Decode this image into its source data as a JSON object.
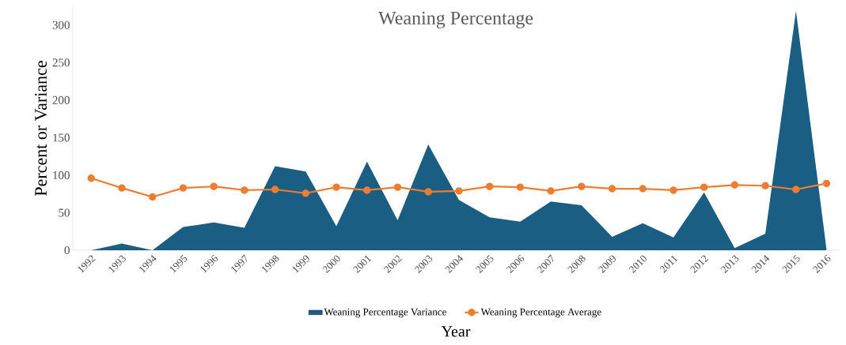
{
  "chart_data": {
    "type": "area",
    "title": "Weaning Percentage",
    "xlabel": "Year",
    "ylabel": "Percent or Variance",
    "categories": [
      "1992",
      "1993",
      "1994",
      "1995",
      "1996",
      "1997",
      "1998",
      "1999",
      "2000",
      "2001",
      "2002",
      "2003",
      "2004",
      "2005",
      "2006",
      "2007",
      "2008",
      "2009",
      "2010",
      "2011",
      "2012",
      "2013",
      "2014",
      "2015",
      "2016"
    ],
    "series": [
      {
        "name": "Weaning Percentage Variance",
        "color": "#1a5e83",
        "values": [
          0,
          9,
          0,
          31,
          37,
          30,
          112,
          105,
          32,
          118,
          40,
          141,
          67,
          44,
          38,
          65,
          60,
          18,
          36,
          17,
          77,
          3,
          22,
          319,
          0
        ]
      },
      {
        "name": "Weaning Percentage Average",
        "type": "line",
        "color": "#ed7d31",
        "marker": "circle",
        "values": [
          96,
          83,
          71,
          83,
          85,
          80,
          81,
          76,
          84,
          80,
          84,
          78,
          79,
          85,
          84,
          79,
          85,
          82,
          82,
          80,
          84,
          87,
          86,
          81,
          89
        ]
      }
    ],
    "ylim": [
      0,
      325
    ],
    "yticks": [
      0,
      50,
      100,
      150,
      200,
      250,
      300
    ],
    "grid": false,
    "legend": "bottom"
  }
}
